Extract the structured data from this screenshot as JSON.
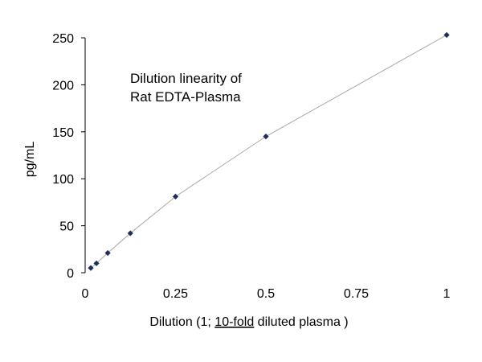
{
  "chart_data": {
    "type": "scatter",
    "title_lines": [
      "Dilution linearity of",
      "Rat EDTA-Plasma"
    ],
    "xlabel_parts": {
      "prefix": "Dilution (1; ",
      "underlined": "10-fold",
      "suffix": " diluted plasma )"
    },
    "ylabel": "pg/mL",
    "xlim": [
      0,
      1
    ],
    "ylim": [
      0,
      250
    ],
    "xticks": [
      0,
      0.25,
      0.5,
      0.75,
      1
    ],
    "xtick_labels": [
      "0",
      "0.25",
      "0.5",
      "0.75",
      "1"
    ],
    "yticks": [
      0,
      50,
      100,
      150,
      200,
      250
    ],
    "ytick_labels": [
      "0",
      "50",
      "100",
      "150",
      "200",
      "250"
    ],
    "grid": false,
    "series": [
      {
        "x": [
          0.015625,
          0.03125,
          0.0625,
          0.125,
          0.25,
          0.5,
          1
        ],
        "y": [
          5,
          10,
          21,
          42,
          81,
          145,
          253
        ],
        "marker": "diamond",
        "color": "#1f2d5c",
        "trendline": true
      }
    ]
  }
}
